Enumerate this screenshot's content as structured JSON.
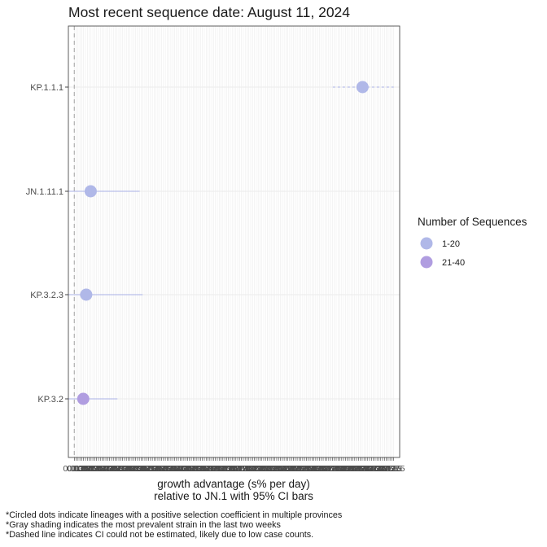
{
  "chart_data": {
    "type": "scatter",
    "title": "Most recent sequence date: August 11, 2024",
    "xlabel_line1": "growth advantage (s% per day)",
    "xlabel_line2": "relative to  JN.1  with 95% CI bars",
    "categories": [
      "KP.1.1.1",
      "JN.1.11.1",
      "KP.3.2.3",
      "KP.3.2"
    ],
    "points": [
      {
        "lineage": "KP.1.1.1",
        "x": 1.94,
        "ci_low": 1.74,
        "ci_high": 2.15,
        "ci_estimated": false,
        "group": "1-20"
      },
      {
        "lineage": "JN.1.11.1",
        "x": 0.11,
        "ci_low": -0.04,
        "ci_high": 0.44,
        "ci_estimated": true,
        "group": "1-20"
      },
      {
        "lineage": "KP.3.2.3",
        "x": 0.08,
        "ci_low": -0.04,
        "ci_high": 0.46,
        "ci_estimated": true,
        "group": "1-20"
      },
      {
        "lineage": "KP.3.2",
        "x": 0.06,
        "ci_low": -0.04,
        "ci_high": 0.29,
        "ci_estimated": true,
        "group": "21-40"
      }
    ],
    "xlim": [
      -0.04,
      2.19
    ],
    "x_ticks": [
      "0",
      "0.0125",
      "0.025",
      "0.0375",
      "0.05",
      "0.0625",
      "0.075",
      "0.0875",
      "0.1",
      "0.1125",
      "0.125",
      "0.1375",
      "0.15",
      "0.1625",
      "0.175",
      "0.1875",
      "0.2",
      "0.2125",
      "0.225",
      "0.2375",
      "0.25",
      "0.2625",
      "0.275",
      "0.2875",
      "0.3",
      "0.3125",
      "0.325",
      "0.3375",
      "0.35",
      "0.3625",
      "0.375",
      "0.3875",
      "0.4",
      "0.4125",
      "0.425",
      "0.4375",
      "0.45",
      "0.4625",
      "0.475",
      "0.4875",
      "0.5",
      "0.5125",
      "0.525",
      "0.5375",
      "0.55",
      "0.5625",
      "0.575",
      "0.5875",
      "0.6",
      "0.6125",
      "0.625",
      "0.6375",
      "0.65",
      "0.6625",
      "0.675",
      "0.6875",
      "0.7",
      "0.7125",
      "0.725",
      "0.7375",
      "0.75",
      "0.7625",
      "0.775",
      "0.7875",
      "0.8",
      "0.8125",
      "0.825",
      "0.8375",
      "0.85",
      "0.8625",
      "0.875",
      "0.8875",
      "0.9",
      "0.9125",
      "0.925",
      "0.9375",
      "0.95",
      "0.9625",
      "0.975",
      "0.9875",
      "1",
      "1.0125",
      "1.025",
      "1.0375",
      "1.05",
      "1.0625",
      "1.075",
      "1.0875",
      "1.1",
      "1.1125",
      "1.125",
      "1.1375",
      "1.15",
      "1.1625",
      "1.175",
      "1.1875",
      "1.2",
      "1.2125",
      "1.225",
      "1.2375",
      "1.25",
      "1.2625",
      "1.275",
      "1.2875",
      "1.3",
      "1.3125",
      "1.325",
      "1.3375",
      "1.35",
      "1.3625",
      "1.375",
      "1.3875",
      "1.4",
      "1.4125",
      "1.425",
      "1.4375",
      "1.45",
      "1.4625",
      "1.475",
      "1.4875",
      "1.5",
      "1.5125",
      "1.525",
      "1.5375",
      "1.55",
      "1.5625",
      "1.575",
      "1.5875",
      "1.6",
      "1.6125",
      "1.625",
      "1.6375",
      "1.65",
      "1.6625",
      "1.675",
      "1.6875",
      "1.7",
      "1.7125",
      "1.725",
      "1.7375",
      "1.75",
      "1.7625",
      "1.775",
      "1.7875",
      "1.8",
      "1.8125",
      "1.825",
      "1.8375",
      "1.85",
      "1.8625",
      "1.875",
      "1.8875",
      "1.9",
      "1.9125",
      "1.925",
      "1.9375",
      "1.95",
      "1.9625",
      "1.975",
      "1.9875",
      "2",
      "2.0125",
      "2.025",
      "2.0375",
      "2.05",
      "2.0625",
      "2.075",
      "2.0875",
      "2.1",
      "2.1125",
      "2.125",
      "2.1375",
      "2.15"
    ],
    "reference_line_x": 0,
    "legend": {
      "title": "Number of Sequences",
      "entries": [
        {
          "label": "1-20",
          "color": "#b0b8e8"
        },
        {
          "label": "21-40",
          "color": "#b09de0"
        }
      ],
      "placement": "right"
    },
    "ci_color": "#a9b0e6",
    "grid": true,
    "footnotes": [
      "*Circled dots indicate lineages with a positive selection coefficient in multiple provinces",
      "*Gray shading indicates the most prevalent strain in the last two weeks",
      "*Dashed line indicates CI could not be estimated, likely due to low case counts."
    ]
  }
}
